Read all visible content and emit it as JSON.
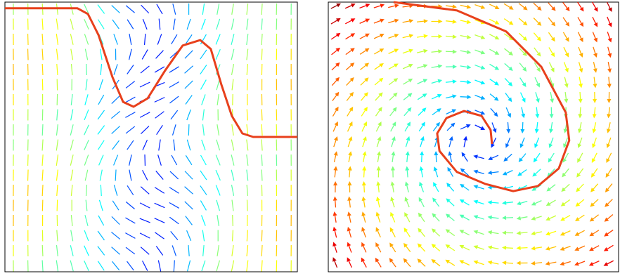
{
  "chart_data": [
    {
      "type": "quiver",
      "xlim": [
        0,
        1
      ],
      "ylim": [
        0,
        1
      ],
      "curve": {
        "color": "#e8401c",
        "x": [
          0,
          0.248,
          0.284,
          0.32,
          0.368,
          0.404,
          0.44,
          0.488,
          0.548,
          0.608,
          0.668,
          0.704,
          0.74,
          0.776,
          0.812,
          0.849,
          1
        ],
        "y": [
          0.977,
          0.977,
          0.956,
          0.878,
          0.721,
          0.63,
          0.612,
          0.643,
          0.747,
          0.839,
          0.859,
          0.826,
          0.695,
          0.578,
          0.513,
          0.5,
          0.5
        ]
      }
    },
    {
      "type": "quiver",
      "xlim": [
        0,
        1
      ],
      "ylim": [
        0,
        1
      ],
      "curve": {
        "color": "#e8401c",
        "x": [
          0.225,
          0.443,
          0.613,
          0.734,
          0.818,
          0.83,
          0.794,
          0.722,
          0.637,
          0.54,
          0.443,
          0.383,
          0.375,
          0.407,
          0.467,
          0.528,
          0.559,
          0.564
        ],
        "y": [
          1,
          0.969,
          0.891,
          0.76,
          0.591,
          0.487,
          0.383,
          0.318,
          0.299,
          0.326,
          0.37,
          0.448,
          0.513,
          0.57,
          0.596,
          0.578,
          0.526,
          0.474
        ]
      }
    }
  ]
}
